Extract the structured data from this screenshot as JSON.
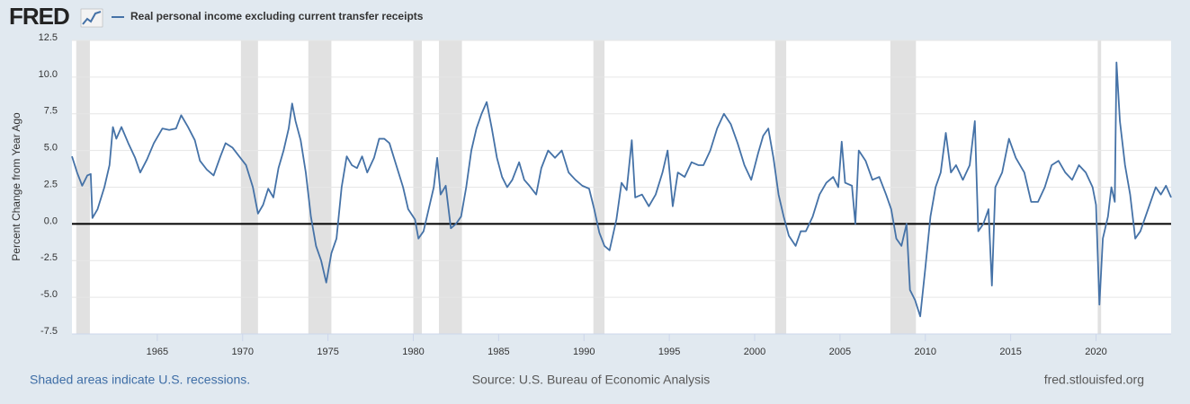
{
  "chart_data": {
    "type": "line",
    "logo": "FRED",
    "ylabel": "Percent Change from Year Ago",
    "note": "Shaded areas indicate U.S. recessions.",
    "source": "Source: U.S. Bureau of Economic Analysis",
    "site": "fred.stlouisfed.org",
    "xlim": [
      1960,
      2024.4
    ],
    "xticks": [
      1965,
      1970,
      1975,
      1980,
      1985,
      1990,
      1995,
      2000,
      2005,
      2010,
      2015,
      2020
    ],
    "ylim": [
      -7.5,
      12.5
    ],
    "yticks": [
      12.5,
      {
        "value": 10,
        "label": "10.0"
      },
      7.5,
      {
        "value": 5,
        "label": "5.0"
      },
      2.5,
      {
        "value": 0,
        "label": "0.0"
      },
      -2.5,
      {
        "value": -5,
        "label": "-5.0"
      },
      -7.5
    ],
    "grid": true,
    "recession_color": "#e1e1e1",
    "recessions": [
      [
        1960.25,
        1961.05
      ],
      [
        1969.9,
        1970.9
      ],
      [
        1973.85,
        1975.2
      ],
      [
        1980.0,
        1980.5
      ],
      [
        1981.5,
        1982.85
      ],
      [
        1990.55,
        1991.2
      ],
      [
        2001.2,
        2001.85
      ],
      [
        2007.95,
        2009.45
      ],
      [
        2020.1,
        2020.3
      ]
    ],
    "series": [
      {
        "name": "Real personal income excluding current transfer receipts",
        "color": "#4572a7",
        "x": [
          1960.0,
          1960.3,
          1960.6,
          1960.9,
          1961.1,
          1961.2,
          1961.5,
          1961.9,
          1962.2,
          1962.4,
          1962.6,
          1962.9,
          1963.3,
          1963.7,
          1964.0,
          1964.4,
          1964.8,
          1965.3,
          1965.7,
          1966.1,
          1966.4,
          1966.8,
          1967.2,
          1967.5,
          1967.9,
          1968.3,
          1968.7,
          1969.0,
          1969.4,
          1969.8,
          1970.2,
          1970.6,
          1970.9,
          1971.2,
          1971.5,
          1971.8,
          1972.1,
          1972.4,
          1972.7,
          1972.9,
          1973.1,
          1973.4,
          1973.7,
          1974.0,
          1974.3,
          1974.6,
          1974.9,
          1975.2,
          1975.5,
          1975.8,
          1976.1,
          1976.4,
          1976.7,
          1977.0,
          1977.3,
          1977.7,
          1978.0,
          1978.3,
          1978.6,
          1979.0,
          1979.4,
          1979.7,
          1980.1,
          1980.3,
          1980.6,
          1980.9,
          1981.2,
          1981.4,
          1981.6,
          1981.9,
          1982.2,
          1982.5,
          1982.8,
          1983.1,
          1983.4,
          1983.7,
          1984.0,
          1984.3,
          1984.6,
          1984.9,
          1985.2,
          1985.5,
          1985.8,
          1986.2,
          1986.5,
          1986.8,
          1987.2,
          1987.5,
          1987.9,
          1988.3,
          1988.7,
          1989.1,
          1989.5,
          1989.9,
          1990.3,
          1990.6,
          1990.9,
          1991.2,
          1991.5,
          1991.9,
          1992.2,
          1992.5,
          1992.8,
          1993.0,
          1993.4,
          1993.8,
          1994.2,
          1994.6,
          1994.9,
          1995.2,
          1995.5,
          1995.9,
          1996.3,
          1996.7,
          1997.0,
          1997.4,
          1997.8,
          1998.2,
          1998.6,
          1999.0,
          1999.4,
          1999.8,
          2000.2,
          2000.5,
          2000.8,
          2001.1,
          2001.4,
          2001.7,
          2002.0,
          2002.4,
          2002.7,
          2003.0,
          2003.4,
          2003.8,
          2004.2,
          2004.6,
          2004.9,
          2005.1,
          2005.3,
          2005.7,
          2005.9,
          2006.1,
          2006.5,
          2006.9,
          2007.3,
          2007.7,
          2008.0,
          2008.3,
          2008.6,
          2008.9,
          2009.1,
          2009.4,
          2009.7,
          2010.0,
          2010.3,
          2010.6,
          2010.9,
          2011.2,
          2011.5,
          2011.8,
          2012.2,
          2012.6,
          2012.9,
          2013.1,
          2013.4,
          2013.7,
          2013.9,
          2014.1,
          2014.5,
          2014.9,
          2015.3,
          2015.8,
          2016.2,
          2016.6,
          2017.0,
          2017.4,
          2017.8,
          2018.2,
          2018.6,
          2019.0,
          2019.4,
          2019.8,
          2020.0,
          2020.2,
          2020.4,
          2020.7,
          2020.9,
          2021.1,
          2021.2,
          2021.4,
          2021.7,
          2022.0,
          2022.3,
          2022.6,
          2022.9,
          2023.2,
          2023.5,
          2023.8,
          2024.1,
          2024.4
        ],
        "values": [
          4.6,
          3.5,
          2.6,
          3.3,
          3.4,
          0.4,
          1.0,
          2.5,
          4.0,
          6.6,
          5.8,
          6.6,
          5.5,
          4.5,
          3.5,
          4.4,
          5.5,
          6.5,
          6.4,
          6.5,
          7.4,
          6.6,
          5.7,
          4.3,
          3.7,
          3.3,
          4.6,
          5.5,
          5.2,
          4.6,
          4.0,
          2.5,
          0.7,
          1.3,
          2.4,
          1.8,
          3.8,
          5.0,
          6.5,
          8.2,
          7.0,
          5.7,
          3.5,
          0.5,
          -1.5,
          -2.5,
          -4.0,
          -2.0,
          -1.0,
          2.5,
          4.6,
          4.0,
          3.8,
          4.6,
          3.5,
          4.5,
          5.8,
          5.8,
          5.5,
          4.0,
          2.5,
          1.0,
          0.3,
          -1.0,
          -0.5,
          1.0,
          2.5,
          4.5,
          2.0,
          2.6,
          -0.3,
          0.0,
          0.5,
          2.5,
          5.0,
          6.5,
          7.5,
          8.3,
          6.5,
          4.5,
          3.2,
          2.5,
          3.0,
          4.2,
          3.0,
          2.6,
          2.0,
          3.8,
          5.0,
          4.5,
          5.0,
          3.5,
          3.0,
          2.6,
          2.4,
          1.0,
          -0.6,
          -1.5,
          -1.8,
          0.3,
          2.8,
          2.3,
          5.7,
          1.8,
          2.0,
          1.2,
          2.0,
          3.5,
          5.0,
          1.2,
          3.5,
          3.2,
          4.2,
          4.0,
          4.0,
          5.0,
          6.5,
          7.5,
          6.8,
          5.5,
          4.0,
          3.0,
          4.8,
          6.0,
          6.5,
          4.5,
          2.0,
          0.5,
          -0.8,
          -1.5,
          -0.5,
          -0.5,
          0.5,
          2.0,
          2.8,
          3.2,
          2.5,
          5.6,
          2.8,
          2.6,
          0.0,
          5.0,
          4.3,
          3.0,
          3.2,
          2.0,
          1.0,
          -1.0,
          -1.5,
          0.0,
          -4.5,
          -5.2,
          -6.3,
          -3.0,
          0.5,
          2.5,
          3.5,
          6.2,
          3.5,
          4.0,
          3.0,
          4.0,
          7.0,
          -0.5,
          0.0,
          1.0,
          -4.2,
          2.5,
          3.5,
          5.8,
          4.5,
          3.5,
          1.5,
          1.5,
          2.5,
          4.0,
          4.3,
          3.5,
          3.0,
          4.0,
          3.5,
          2.5,
          1.3,
          -5.5,
          -1.0,
          0.5,
          2.5,
          1.5,
          11.0,
          7.0,
          4.0,
          2.0,
          -1.0,
          -0.5,
          0.5,
          1.5,
          2.5,
          2.0,
          2.6,
          1.8
        ]
      }
    ]
  }
}
